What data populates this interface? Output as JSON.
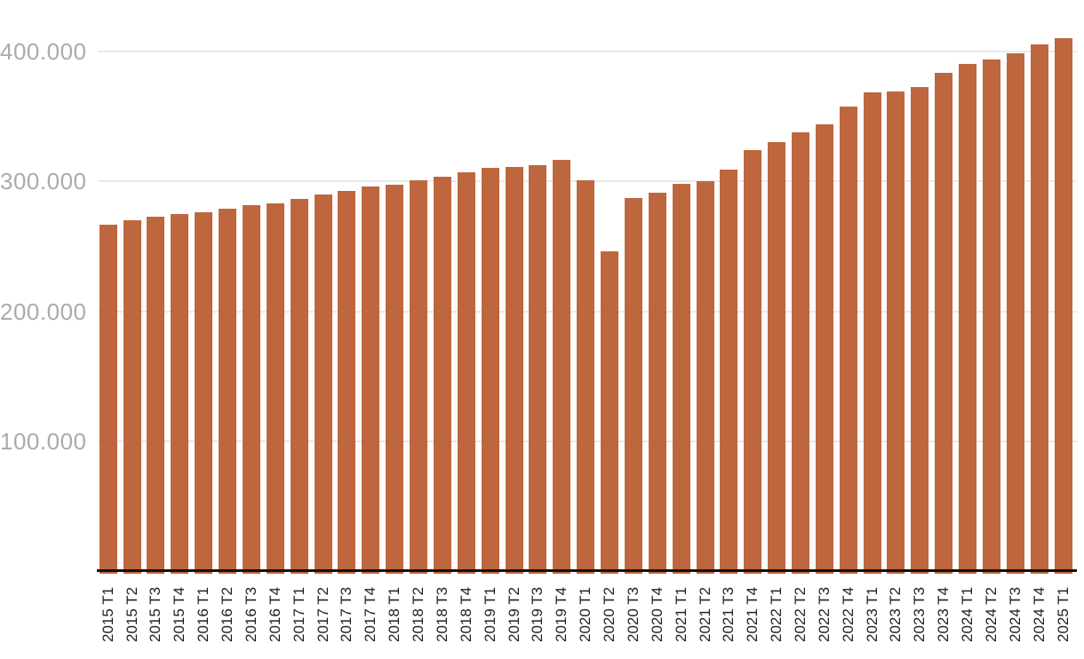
{
  "chart_data": {
    "type": "bar",
    "title": "",
    "xlabel": "",
    "ylabel": "",
    "categories": [
      "2015 T1",
      "2015 T2",
      "2015 T3",
      "2015 T4",
      "2016 T1",
      "2016 T2",
      "2016 T3",
      "2016 T4",
      "2017 T1",
      "2017 T2",
      "2017 T3",
      "2017 T4",
      "2018 T1",
      "2018 T2",
      "2018 T3",
      "2018 T4",
      "2019 T1",
      "2019 T2",
      "2019 T3",
      "2019 T4",
      "2020 T1",
      "2020 T2",
      "2020 T3",
      "2020 T4",
      "2021 T1",
      "2021 T2",
      "2021 T3",
      "2021 T4",
      "2022 T1",
      "2022 T2",
      "2022 T3",
      "2022 T4",
      "2023 T1",
      "2023 T2",
      "2023 T3",
      "2023 T4",
      "2024 T1",
      "2024 T2",
      "2024 T3",
      "2024 T4",
      "2025 T1"
    ],
    "values": [
      267000,
      270000,
      273000,
      275000,
      276500,
      279000,
      281500,
      283500,
      286500,
      290000,
      293000,
      296500,
      297500,
      301000,
      303500,
      307000,
      310500,
      311000,
      312500,
      316500,
      301000,
      246500,
      287500,
      291500,
      298000,
      300500,
      309500,
      324000,
      330500,
      338000,
      344000,
      358000,
      369000,
      369500,
      373000,
      384000,
      390500,
      394000,
      398500,
      405500,
      410500
    ],
    "y_axis": {
      "ticks": [
        {
          "label": "100.000",
          "value": 100000
        },
        {
          "label": "200.000",
          "value": 200000
        },
        {
          "label": "300.000",
          "value": 300000
        },
        {
          "label": "400.000",
          "value": 400000
        }
      ],
      "ylim": [
        0,
        440000
      ]
    },
    "legend": null,
    "grid": "horizontal",
    "colors": {
      "bar": "#BE673E",
      "gridline": "#E9E9E9",
      "axis_line": "#111111",
      "y_tick_label": "#ABABAB",
      "x_tick_label": "#222222",
      "background": "#FFFFFF"
    }
  }
}
